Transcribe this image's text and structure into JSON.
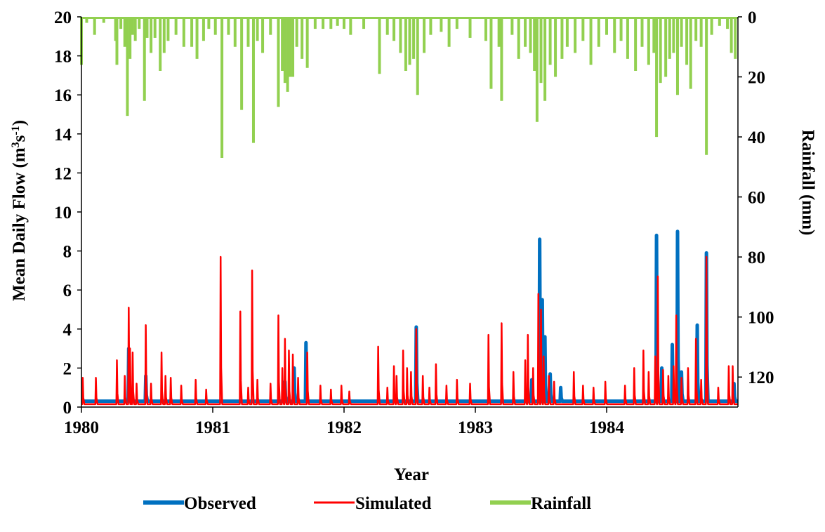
{
  "chart_data": {
    "type": "line",
    "title": "",
    "xlabel": "Year",
    "ylabel_left": "Mean Daily Flow (m3s-1)",
    "ylabel_left_parts": {
      "main": "Mean Daily Flow (m",
      "sup1": "3",
      "mid": "s",
      "sup2": "-1",
      "end": ")"
    },
    "ylabel_right": "Rainfall (mm)",
    "xlim": [
      1980,
      1985
    ],
    "ylim_left": [
      0,
      20
    ],
    "ylim_right": [
      0,
      130
    ],
    "right_axis_inverted": true,
    "grid": false,
    "legend_position": "bottom",
    "x_ticks": [
      1980,
      1981,
      1982,
      1983,
      1984
    ],
    "x_tick_labels": [
      "1980",
      "1981",
      "1982",
      "1983",
      "1984"
    ],
    "y_left_ticks": [
      0,
      2,
      4,
      6,
      8,
      10,
      12,
      14,
      16,
      18,
      20
    ],
    "y_left_tick_labels": [
      "0",
      "2",
      "4",
      "6",
      "8",
      "10",
      "12",
      "14",
      "16",
      "18",
      "20"
    ],
    "y_right_ticks": [
      0,
      20,
      40,
      60,
      80,
      100,
      120
    ],
    "y_right_tick_labels": [
      "0",
      "20",
      "40",
      "60",
      "80",
      "100",
      "120"
    ],
    "series": [
      {
        "name": "Observed",
        "color": "#0070c0",
        "axis": "left",
        "baseline": 0.3,
        "peaks": [
          [
            1980.36,
            3.0
          ],
          [
            1980.49,
            1.6
          ],
          [
            1981.55,
            1.3
          ],
          [
            1981.62,
            2.0
          ],
          [
            1981.71,
            3.3
          ],
          [
            1982.55,
            4.1
          ],
          [
            1983.43,
            1.4
          ],
          [
            1983.49,
            8.6
          ],
          [
            1983.51,
            5.5
          ],
          [
            1983.53,
            3.6
          ],
          [
            1983.57,
            1.7
          ],
          [
            1983.65,
            1.0
          ],
          [
            1984.38,
            8.8
          ],
          [
            1984.42,
            2.0
          ],
          [
            1984.5,
            3.2
          ],
          [
            1984.54,
            9.0
          ],
          [
            1984.57,
            1.8
          ],
          [
            1984.69,
            4.2
          ],
          [
            1984.76,
            7.9
          ],
          [
            1984.97,
            1.2
          ]
        ]
      },
      {
        "name": "Simulated",
        "color": "#ff0000",
        "axis": "left",
        "baseline": 0.15,
        "peaks": [
          [
            1980.01,
            1.5
          ],
          [
            1980.11,
            1.5
          ],
          [
            1980.27,
            2.4
          ],
          [
            1980.33,
            1.6
          ],
          [
            1980.36,
            5.1
          ],
          [
            1980.37,
            3.0
          ],
          [
            1980.39,
            2.8
          ],
          [
            1980.42,
            1.2
          ],
          [
            1980.49,
            4.2
          ],
          [
            1980.53,
            1.2
          ],
          [
            1980.61,
            2.8
          ],
          [
            1980.64,
            1.6
          ],
          [
            1980.68,
            1.5
          ],
          [
            1980.76,
            1.1
          ],
          [
            1980.87,
            1.4
          ],
          [
            1980.95,
            0.9
          ],
          [
            1981.06,
            7.7
          ],
          [
            1981.21,
            4.9
          ],
          [
            1981.27,
            1.0
          ],
          [
            1981.3,
            7.0
          ],
          [
            1981.34,
            1.4
          ],
          [
            1981.44,
            1.2
          ],
          [
            1981.5,
            4.7
          ],
          [
            1981.53,
            2.0
          ],
          [
            1981.55,
            3.5
          ],
          [
            1981.58,
            2.9
          ],
          [
            1981.61,
            2.7
          ],
          [
            1981.65,
            1.5
          ],
          [
            1981.72,
            2.8
          ],
          [
            1981.82,
            1.1
          ],
          [
            1981.9,
            0.9
          ],
          [
            1981.98,
            1.1
          ],
          [
            1982.04,
            0.8
          ],
          [
            1982.26,
            3.1
          ],
          [
            1982.33,
            1.0
          ],
          [
            1982.38,
            2.1
          ],
          [
            1982.4,
            1.6
          ],
          [
            1982.45,
            2.9
          ],
          [
            1982.48,
            2.0
          ],
          [
            1982.51,
            1.8
          ],
          [
            1982.55,
            4.0
          ],
          [
            1982.6,
            1.6
          ],
          [
            1982.65,
            1.0
          ],
          [
            1982.7,
            2.2
          ],
          [
            1982.78,
            1.1
          ],
          [
            1982.86,
            1.4
          ],
          [
            1982.96,
            1.2
          ],
          [
            1983.1,
            3.7
          ],
          [
            1983.2,
            4.3
          ],
          [
            1983.29,
            1.8
          ],
          [
            1983.38,
            2.4
          ],
          [
            1983.4,
            3.7
          ],
          [
            1983.44,
            2.0
          ],
          [
            1983.48,
            5.8
          ],
          [
            1983.5,
            5.0
          ],
          [
            1983.52,
            2.6
          ],
          [
            1983.56,
            1.6
          ],
          [
            1983.6,
            1.3
          ],
          [
            1983.75,
            1.8
          ],
          [
            1983.82,
            1.1
          ],
          [
            1983.9,
            1.0
          ],
          [
            1983.99,
            1.3
          ],
          [
            1984.14,
            1.1
          ],
          [
            1984.21,
            2.0
          ],
          [
            1984.28,
            2.9
          ],
          [
            1984.32,
            1.8
          ],
          [
            1984.37,
            2.6
          ],
          [
            1984.39,
            6.7
          ],
          [
            1984.43,
            1.9
          ],
          [
            1984.47,
            1.6
          ],
          [
            1984.51,
            2.1
          ],
          [
            1984.53,
            4.7
          ],
          [
            1984.57,
            1.5
          ],
          [
            1984.62,
            2.0
          ],
          [
            1984.68,
            3.5
          ],
          [
            1984.72,
            1.4
          ],
          [
            1984.76,
            7.7
          ],
          [
            1984.85,
            1.0
          ],
          [
            1984.93,
            2.1
          ],
          [
            1984.96,
            2.1
          ]
        ]
      },
      {
        "name": "Rainfall",
        "color": "#92d050",
        "axis": "right",
        "bars": [
          [
            1980.0,
            16
          ],
          [
            1980.04,
            2
          ],
          [
            1980.1,
            6
          ],
          [
            1980.17,
            2
          ],
          [
            1980.26,
            8
          ],
          [
            1980.27,
            16
          ],
          [
            1980.3,
            4
          ],
          [
            1980.33,
            10
          ],
          [
            1980.35,
            33
          ],
          [
            1980.37,
            14
          ],
          [
            1980.39,
            6
          ],
          [
            1980.41,
            8
          ],
          [
            1980.44,
            4
          ],
          [
            1980.48,
            28
          ],
          [
            1980.5,
            7
          ],
          [
            1980.53,
            12
          ],
          [
            1980.56,
            7
          ],
          [
            1980.6,
            18
          ],
          [
            1980.63,
            12
          ],
          [
            1980.66,
            8
          ],
          [
            1980.72,
            6
          ],
          [
            1980.78,
            10
          ],
          [
            1980.84,
            10
          ],
          [
            1980.88,
            14
          ],
          [
            1980.93,
            8
          ],
          [
            1980.97,
            4
          ],
          [
            1981.02,
            6
          ],
          [
            1981.07,
            47
          ],
          [
            1981.12,
            6
          ],
          [
            1981.17,
            10
          ],
          [
            1981.22,
            31
          ],
          [
            1981.27,
            10
          ],
          [
            1981.31,
            42
          ],
          [
            1981.34,
            8
          ],
          [
            1981.38,
            12
          ],
          [
            1981.44,
            6
          ],
          [
            1981.5,
            30
          ],
          [
            1981.53,
            18
          ],
          [
            1981.55,
            22
          ],
          [
            1981.57,
            25
          ],
          [
            1981.59,
            20
          ],
          [
            1981.61,
            20
          ],
          [
            1981.64,
            10
          ],
          [
            1981.68,
            14
          ],
          [
            1981.72,
            17
          ],
          [
            1981.78,
            4
          ],
          [
            1981.84,
            4
          ],
          [
            1981.9,
            4
          ],
          [
            1981.95,
            3
          ],
          [
            1982.0,
            4
          ],
          [
            1982.05,
            6
          ],
          [
            1982.15,
            4
          ],
          [
            1982.27,
            19
          ],
          [
            1982.33,
            6
          ],
          [
            1982.38,
            8
          ],
          [
            1982.43,
            12
          ],
          [
            1982.47,
            18
          ],
          [
            1982.5,
            16
          ],
          [
            1982.53,
            14
          ],
          [
            1982.56,
            26
          ],
          [
            1982.61,
            12
          ],
          [
            1982.66,
            6
          ],
          [
            1982.74,
            5
          ],
          [
            1982.8,
            10
          ],
          [
            1982.86,
            4
          ],
          [
            1982.96,
            7
          ],
          [
            1983.08,
            8
          ],
          [
            1983.12,
            24
          ],
          [
            1983.18,
            10
          ],
          [
            1983.2,
            28
          ],
          [
            1983.28,
            6
          ],
          [
            1983.33,
            14
          ],
          [
            1983.38,
            10
          ],
          [
            1983.42,
            12
          ],
          [
            1983.45,
            18
          ],
          [
            1983.47,
            35
          ],
          [
            1983.5,
            22
          ],
          [
            1983.53,
            28
          ],
          [
            1983.57,
            16
          ],
          [
            1983.61,
            20
          ],
          [
            1983.66,
            14
          ],
          [
            1983.7,
            10
          ],
          [
            1983.76,
            12
          ],
          [
            1983.82,
            8
          ],
          [
            1983.88,
            16
          ],
          [
            1983.94,
            10
          ],
          [
            1984.0,
            6
          ],
          [
            1984.06,
            12
          ],
          [
            1984.11,
            8
          ],
          [
            1984.16,
            14
          ],
          [
            1984.22,
            18
          ],
          [
            1984.27,
            10
          ],
          [
            1984.32,
            16
          ],
          [
            1984.36,
            12
          ],
          [
            1984.38,
            40
          ],
          [
            1984.41,
            22
          ],
          [
            1984.45,
            20
          ],
          [
            1984.48,
            14
          ],
          [
            1984.51,
            12
          ],
          [
            1984.54,
            26
          ],
          [
            1984.57,
            10
          ],
          [
            1984.61,
            16
          ],
          [
            1984.64,
            24
          ],
          [
            1984.68,
            8
          ],
          [
            1984.72,
            10
          ],
          [
            1984.76,
            46
          ],
          [
            1984.8,
            6
          ],
          [
            1984.86,
            3
          ],
          [
            1984.92,
            4
          ],
          [
            1984.95,
            12
          ],
          [
            1984.98,
            14
          ]
        ]
      }
    ]
  }
}
